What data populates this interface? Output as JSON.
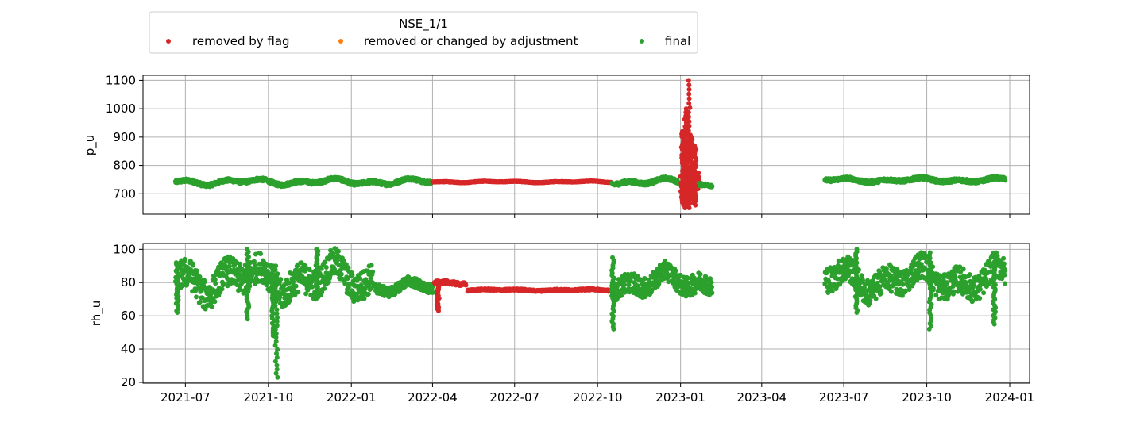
{
  "colors": {
    "removed_by_flag": "#d62728",
    "removed_or_changed": "#ff7f0e",
    "final": "#2ca02c",
    "grid": "#b0b0b0"
  },
  "chart_data": {
    "type": "scatter",
    "legend": {
      "title": "NSE_1/1",
      "placement": "top-left",
      "entries": [
        {
          "key": "removed_by_flag",
          "label": "removed by flag"
        },
        {
          "key": "removed_or_changed",
          "label": "removed or changed by adjustment"
        },
        {
          "key": "final",
          "label": "final"
        }
      ]
    },
    "grid": true,
    "xaxis": {
      "type": "date",
      "range": [
        "2021-05-15",
        "2024-01-23"
      ],
      "ticks": [
        "2021-07-01",
        "2021-10-01",
        "2022-01-01",
        "2022-04-01",
        "2022-07-01",
        "2022-10-01",
        "2023-01-01",
        "2023-04-01",
        "2023-07-01",
        "2023-10-01",
        "2024-01-01"
      ],
      "tick_labels": [
        "2021-07",
        "2021-10",
        "2022-01",
        "2022-04",
        "2022-07",
        "2022-10",
        "2023-01",
        "2023-04",
        "2023-07",
        "2023-10",
        "2024-01"
      ]
    },
    "panels": [
      {
        "ylabel": "p_u",
        "ylim": [
          628,
          1118
        ],
        "yticks": [
          700,
          800,
          900,
          1000,
          1100
        ],
        "segments": [
          {
            "series": "final",
            "start": "2021-06-20",
            "end": "2022-03-31",
            "center": 742,
            "amp": 12,
            "noise": 6
          },
          {
            "series": "removed_by_flag",
            "start": "2022-04-01",
            "end": "2022-10-16",
            "center": 742,
            "amp": 3,
            "noise": 1
          },
          {
            "series": "final",
            "start": "2022-10-17",
            "end": "2022-12-30",
            "center": 742,
            "amp": 12,
            "noise": 6
          },
          {
            "series": "removed_by_flag",
            "start": "2023-01-01",
            "end": "2023-01-22",
            "center": 745,
            "amp": 40,
            "noise": 30
          },
          {
            "series": "final",
            "start": "2023-01-20",
            "end": "2023-02-05",
            "center": 732,
            "amp": 6,
            "noise": 5
          },
          {
            "series": "final",
            "start": "2023-06-10",
            "end": "2023-12-27",
            "center": 748,
            "amp": 8,
            "noise": 6
          }
        ],
        "spikes": [
          {
            "series": "removed_by_flag",
            "date": "2023-01-03",
            "min": 660,
            "max": 920
          },
          {
            "series": "removed_by_flag",
            "date": "2023-01-06",
            "min": 650,
            "max": 1000
          },
          {
            "series": "removed_by_flag",
            "date": "2023-01-09",
            "min": 655,
            "max": 980
          },
          {
            "series": "removed_by_flag",
            "date": "2023-01-11",
            "min": 650,
            "max": 1100
          },
          {
            "series": "removed_by_flag",
            "date": "2023-01-13",
            "min": 680,
            "max": 900
          },
          {
            "series": "removed_by_flag",
            "date": "2023-01-17",
            "min": 660,
            "max": 870
          }
        ]
      },
      {
        "ylabel": "rh_u",
        "ylim": [
          19.5,
          103.5
        ],
        "yticks": [
          20,
          40,
          60,
          80,
          100
        ],
        "segments": [
          {
            "series": "final",
            "start": "2021-06-20",
            "end": "2022-01-25",
            "center": 82,
            "amp": 10,
            "noise": 9
          },
          {
            "series": "final",
            "start": "2022-01-26",
            "end": "2022-04-02",
            "center": 77,
            "amp": 4,
            "noise": 3
          },
          {
            "series": "removed_by_flag",
            "start": "2022-04-03",
            "end": "2022-05-08",
            "center": 80,
            "amp": 1,
            "noise": 1
          },
          {
            "series": "removed_by_flag",
            "start": "2022-05-10",
            "end": "2022-10-16",
            "center": 75.5,
            "amp": 0.5,
            "noise": 0.5
          },
          {
            "series": "final",
            "start": "2022-10-17",
            "end": "2023-02-05",
            "center": 80,
            "amp": 7,
            "noise": 6
          },
          {
            "series": "final",
            "start": "2023-06-10",
            "end": "2023-12-27",
            "center": 82,
            "amp": 9,
            "noise": 8
          }
        ],
        "spikes": [
          {
            "series": "final",
            "date": "2021-10-10",
            "min": 23,
            "max": 90
          },
          {
            "series": "final",
            "date": "2021-10-06",
            "min": 48,
            "max": 90
          },
          {
            "series": "final",
            "date": "2021-06-22",
            "min": 62,
            "max": 92
          },
          {
            "series": "final",
            "date": "2021-09-08",
            "min": 58,
            "max": 100
          },
          {
            "series": "final",
            "date": "2021-11-24",
            "min": 70,
            "max": 100
          },
          {
            "series": "removed_by_flag",
            "date": "2022-04-07",
            "min": 63,
            "max": 78
          },
          {
            "series": "final",
            "date": "2022-10-18",
            "min": 52,
            "max": 95
          },
          {
            "series": "final",
            "date": "2023-10-05",
            "min": 52,
            "max": 98
          },
          {
            "series": "final",
            "date": "2023-12-15",
            "min": 55,
            "max": 90
          },
          {
            "series": "final",
            "date": "2023-07-15",
            "min": 62,
            "max": 100
          }
        ]
      }
    ]
  }
}
